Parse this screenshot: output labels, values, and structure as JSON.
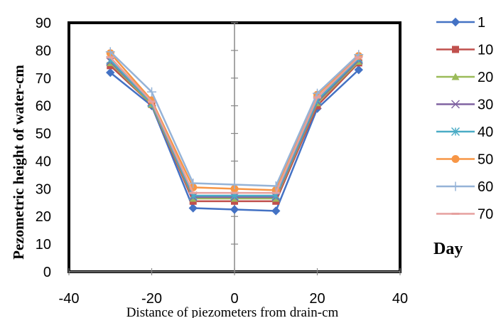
{
  "chart_data": {
    "type": "line",
    "xlabel": "Distance of piezometers from drain-cm",
    "ylabel": "Pezometric height of water-cm",
    "xlim": [
      -40,
      40
    ],
    "ylim": [
      0,
      90
    ],
    "x_ticks": [
      "-40",
      "-20",
      "0",
      "20",
      "40"
    ],
    "y_ticks": [
      "0",
      "10",
      "20",
      "30",
      "40",
      "50",
      "60",
      "70",
      "80",
      "90"
    ],
    "grid": false,
    "legend_title": "Day",
    "legend_position": "right",
    "x": [
      -30,
      -20,
      -10,
      0,
      10,
      20,
      30
    ],
    "series": [
      {
        "name": "1",
        "color": "#4472C4",
        "marker": "diamond",
        "values": [
          72,
          60,
          23,
          22.5,
          22,
          59,
          73
        ]
      },
      {
        "name": "10",
        "color": "#C0504D",
        "marker": "square",
        "values": [
          74.5,
          60.5,
          25.5,
          25.5,
          25.5,
          60,
          75.5
        ]
      },
      {
        "name": "20",
        "color": "#9BBB59",
        "marker": "triangle",
        "values": [
          75.5,
          60.5,
          26.5,
          26.5,
          26.5,
          61,
          76
        ]
      },
      {
        "name": "30",
        "color": "#8064A2",
        "marker": "x",
        "values": [
          76,
          61,
          27,
          27,
          27,
          61.5,
          76.5
        ]
      },
      {
        "name": "40",
        "color": "#4BACC6",
        "marker": "star",
        "values": [
          76.5,
          61,
          27.5,
          27.5,
          27.5,
          62,
          77
        ]
      },
      {
        "name": "50",
        "color": "#F79646",
        "marker": "circle",
        "values": [
          79,
          62,
          30.5,
          30,
          29.5,
          64,
          78
        ]
      },
      {
        "name": "60",
        "color": "#95B3D7",
        "marker": "plus",
        "values": [
          79.5,
          65,
          32,
          31.5,
          31,
          64.5,
          78.5
        ]
      },
      {
        "name": "70",
        "color": "#E6A09E",
        "marker": "dash",
        "values": [
          77.5,
          61.5,
          28.5,
          28.5,
          28.5,
          63,
          77.5
        ]
      }
    ]
  }
}
